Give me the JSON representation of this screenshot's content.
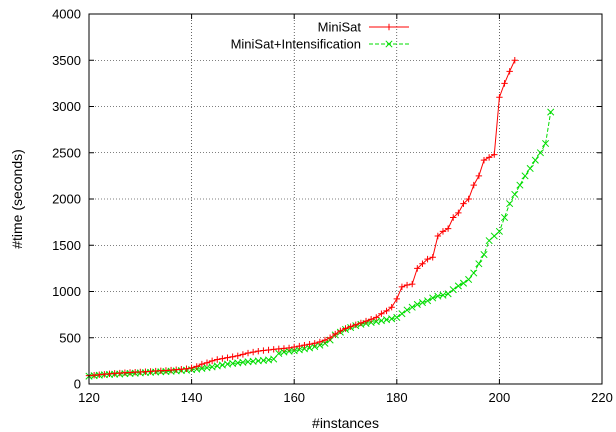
{
  "chart_data": {
    "type": "line",
    "title": "",
    "xlabel": "#instances",
    "ylabel": "#time (seconds)",
    "xlim": [
      120,
      220
    ],
    "ylim": [
      0,
      4000
    ],
    "xticks": [
      120,
      140,
      160,
      180,
      200,
      220
    ],
    "yticks": [
      0,
      500,
      1000,
      1500,
      2000,
      2500,
      3000,
      3500,
      4000
    ],
    "grid": true,
    "legend_position": "top-right",
    "series": [
      {
        "name": "MiniSat",
        "color": "#ff0000",
        "marker": "plus",
        "x": [
          120,
          121,
          122,
          123,
          124,
          125,
          126,
          127,
          128,
          129,
          130,
          131,
          132,
          133,
          134,
          135,
          136,
          137,
          138,
          139,
          140,
          141,
          142,
          143,
          144,
          145,
          146,
          147,
          148,
          149,
          150,
          151,
          152,
          153,
          154,
          155,
          156,
          157,
          158,
          159,
          160,
          161,
          162,
          163,
          164,
          165,
          166,
          167,
          168,
          169,
          170,
          171,
          172,
          173,
          174,
          175,
          176,
          177,
          178,
          179,
          180,
          181,
          182,
          183,
          184,
          185,
          186,
          187,
          188,
          189,
          190,
          191,
          192,
          193,
          194,
          195,
          196,
          197,
          198,
          199,
          200,
          201,
          202,
          203
        ],
        "y": [
          90,
          95,
          100,
          105,
          110,
          115,
          118,
          122,
          125,
          128,
          130,
          133,
          136,
          140,
          143,
          146,
          150,
          155,
          160,
          165,
          175,
          190,
          215,
          230,
          250,
          265,
          275,
          285,
          295,
          305,
          320,
          335,
          345,
          355,
          362,
          368,
          375,
          380,
          385,
          390,
          400,
          410,
          420,
          430,
          440,
          455,
          475,
          500,
          540,
          575,
          600,
          620,
          640,
          660,
          680,
          700,
          720,
          760,
          790,
          830,
          920,
          1050,
          1070,
          1080,
          1250,
          1300,
          1350,
          1370,
          1600,
          1650,
          1680,
          1800,
          1850,
          1950,
          2000,
          2150,
          2250,
          2420,
          2450,
          2480,
          3100,
          3250,
          3380,
          3500
        ]
      },
      {
        "name": "MiniSat+Intensification",
        "color": "#00dd00",
        "marker": "cross",
        "x": [
          120,
          121,
          122,
          123,
          124,
          125,
          126,
          127,
          128,
          129,
          130,
          131,
          132,
          133,
          134,
          135,
          136,
          137,
          138,
          139,
          140,
          141,
          142,
          143,
          144,
          145,
          146,
          147,
          148,
          149,
          150,
          151,
          152,
          153,
          154,
          155,
          156,
          157,
          158,
          159,
          160,
          161,
          162,
          163,
          164,
          165,
          166,
          167,
          168,
          169,
          170,
          171,
          172,
          173,
          174,
          175,
          176,
          177,
          178,
          179,
          180,
          181,
          182,
          183,
          184,
          185,
          186,
          187,
          188,
          189,
          190,
          191,
          192,
          193,
          194,
          195,
          196,
          197,
          198,
          199,
          200,
          201,
          202,
          203,
          204,
          205,
          206,
          207,
          208,
          209,
          210
        ],
        "y": [
          85,
          90,
          95,
          100,
          103,
          106,
          108,
          111,
          114,
          117,
          120,
          123,
          126,
          129,
          132,
          135,
          138,
          141,
          145,
          149,
          155,
          160,
          168,
          176,
          185,
          195,
          205,
          215,
          222,
          228,
          235,
          240,
          245,
          250,
          255,
          260,
          270,
          330,
          345,
          355,
          360,
          370,
          380,
          390,
          405,
          420,
          440,
          475,
          530,
          560,
          590,
          610,
          630,
          645,
          655,
          665,
          675,
          685,
          695,
          705,
          720,
          760,
          800,
          830,
          860,
          880,
          900,
          930,
          950,
          960,
          975,
          1020,
          1060,
          1090,
          1130,
          1200,
          1300,
          1400,
          1550,
          1600,
          1650,
          1800,
          1950,
          2050,
          2150,
          2250,
          2330,
          2420,
          2500,
          2600,
          2940
        ]
      }
    ]
  }
}
